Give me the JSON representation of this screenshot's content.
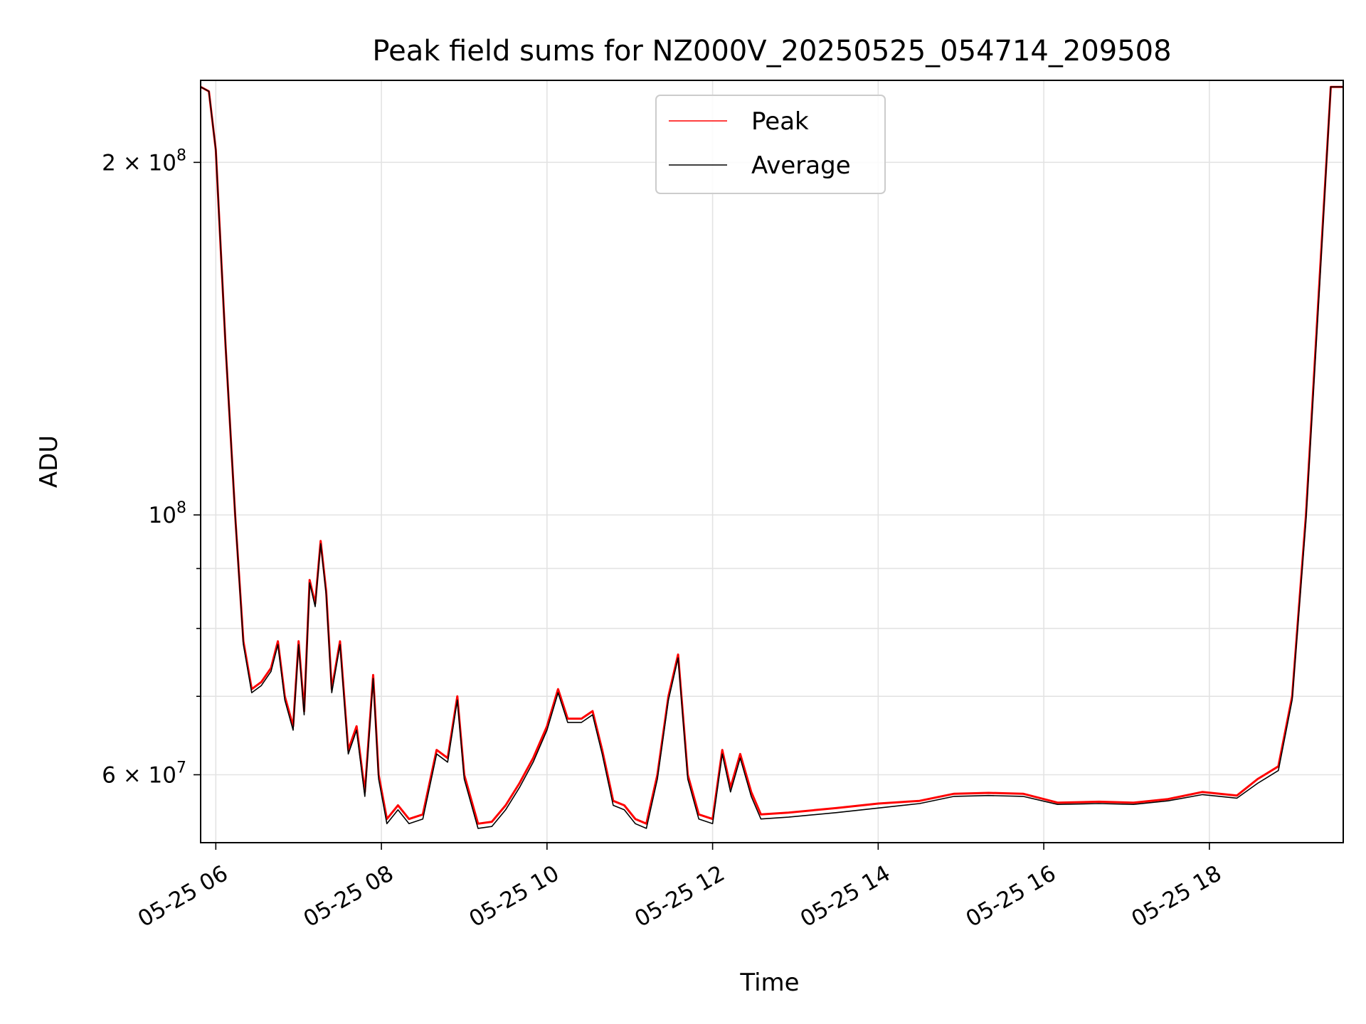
{
  "chart_data": {
    "type": "line",
    "title": "Peak field sums for NZ000V_20250525_054714_209508",
    "xlabel": "Time",
    "ylabel": "ADU",
    "yscale": "log",
    "xlim": [
      "2025-05-25 05:49",
      "2025-05-25 19:37"
    ],
    "ylim": [
      52500000,
      235000000
    ],
    "grid": true,
    "legend_position": "top-center",
    "x_tick_labels": [
      "05-25 06",
      "05-25 08",
      "05-25 10",
      "05-25 12",
      "05-25 14",
      "05-25 16",
      "05-25 18"
    ],
    "x_ticks": [
      "2025-05-25 06:00",
      "2025-05-25 08:00",
      "2025-05-25 10:00",
      "2025-05-25 12:00",
      "2025-05-25 14:00",
      "2025-05-25 16:00",
      "2025-05-25 18:00"
    ],
    "y_major_ticks": [
      {
        "value": 60000000,
        "label_mantissa": "6",
        "label_base": "10",
        "label_exp": "7"
      },
      {
        "value": 100000000,
        "label_mantissa": "",
        "label_base": "10",
        "label_exp": "8"
      },
      {
        "value": 200000000,
        "label_mantissa": "2",
        "label_base": "10",
        "label_exp": "8"
      }
    ],
    "y_minor_ticks": [
      70000000,
      80000000,
      90000000
    ],
    "series": [
      {
        "name": "Peak",
        "color": "#ff0000",
        "points": [
          [
            "2025-05-25 05:49",
            232000000
          ],
          [
            "2025-05-25 05:55",
            230000000
          ],
          [
            "2025-05-25 06:00",
            205000000
          ],
          [
            "2025-05-25 06:07",
            140000000
          ],
          [
            "2025-05-25 06:14",
            100000000
          ],
          [
            "2025-05-25 06:20",
            78000000
          ],
          [
            "2025-05-25 06:26",
            71000000
          ],
          [
            "2025-05-25 06:33",
            72000000
          ],
          [
            "2025-05-25 06:40",
            74000000
          ],
          [
            "2025-05-25 06:45",
            78000000
          ],
          [
            "2025-05-25 06:50",
            70000000
          ],
          [
            "2025-05-25 06:56",
            66000000
          ],
          [
            "2025-05-25 07:00",
            78000000
          ],
          [
            "2025-05-25 07:04",
            68000000
          ],
          [
            "2025-05-25 07:08",
            88000000
          ],
          [
            "2025-05-25 07:12",
            84000000
          ],
          [
            "2025-05-25 07:16",
            95000000
          ],
          [
            "2025-05-25 07:20",
            86000000
          ],
          [
            "2025-05-25 07:24",
            71000000
          ],
          [
            "2025-05-25 07:30",
            78000000
          ],
          [
            "2025-05-25 07:36",
            63000000
          ],
          [
            "2025-05-25 07:42",
            66000000
          ],
          [
            "2025-05-25 07:48",
            58000000
          ],
          [
            "2025-05-25 07:54",
            73000000
          ],
          [
            "2025-05-25 07:58",
            60000000
          ],
          [
            "2025-05-25 08:04",
            55000000
          ],
          [
            "2025-05-25 08:12",
            56500000
          ],
          [
            "2025-05-25 08:20",
            55000000
          ],
          [
            "2025-05-25 08:30",
            55500000
          ],
          [
            "2025-05-25 08:40",
            63000000
          ],
          [
            "2025-05-25 08:48",
            62000000
          ],
          [
            "2025-05-25 08:55",
            70000000
          ],
          [
            "2025-05-25 09:00",
            60000000
          ],
          [
            "2025-05-25 09:10",
            54500000
          ],
          [
            "2025-05-25 09:20",
            54700000
          ],
          [
            "2025-05-25 09:30",
            56500000
          ],
          [
            "2025-05-25 09:40",
            59000000
          ],
          [
            "2025-05-25 09:50",
            62000000
          ],
          [
            "2025-05-25 10:00",
            66000000
          ],
          [
            "2025-05-25 10:08",
            71000000
          ],
          [
            "2025-05-25 10:15",
            67000000
          ],
          [
            "2025-05-25 10:25",
            67000000
          ],
          [
            "2025-05-25 10:33",
            68000000
          ],
          [
            "2025-05-25 10:40",
            63000000
          ],
          [
            "2025-05-25 10:48",
            57000000
          ],
          [
            "2025-05-25 10:56",
            56500000
          ],
          [
            "2025-05-25 11:04",
            55000000
          ],
          [
            "2025-05-25 11:12",
            54500000
          ],
          [
            "2025-05-25 11:20",
            60000000
          ],
          [
            "2025-05-25 11:28",
            70000000
          ],
          [
            "2025-05-25 11:35",
            76000000
          ],
          [
            "2025-05-25 11:42",
            60000000
          ],
          [
            "2025-05-25 11:50",
            55500000
          ],
          [
            "2025-05-25 12:00",
            55000000
          ],
          [
            "2025-05-25 12:07",
            63000000
          ],
          [
            "2025-05-25 12:13",
            58500000
          ],
          [
            "2025-05-25 12:20",
            62500000
          ],
          [
            "2025-05-25 12:28",
            58000000
          ],
          [
            "2025-05-25 12:35",
            55500000
          ],
          [
            "2025-05-25 12:55",
            55700000
          ],
          [
            "2025-05-25 13:30",
            56200000
          ],
          [
            "2025-05-25 14:00",
            56700000
          ],
          [
            "2025-05-25 14:30",
            57000000
          ],
          [
            "2025-05-25 14:55",
            57800000
          ],
          [
            "2025-05-25 15:20",
            57900000
          ],
          [
            "2025-05-25 15:45",
            57800000
          ],
          [
            "2025-05-25 16:10",
            56800000
          ],
          [
            "2025-05-25 16:40",
            56900000
          ],
          [
            "2025-05-25 17:05",
            56800000
          ],
          [
            "2025-05-25 17:30",
            57200000
          ],
          [
            "2025-05-25 17:55",
            58000000
          ],
          [
            "2025-05-25 18:20",
            57600000
          ],
          [
            "2025-05-25 18:35",
            59500000
          ],
          [
            "2025-05-25 18:50",
            61000000
          ],
          [
            "2025-05-25 19:00",
            70000000
          ],
          [
            "2025-05-25 19:10",
            100000000
          ],
          [
            "2025-05-25 19:20",
            160000000
          ],
          [
            "2025-05-25 19:28",
            232000000
          ],
          [
            "2025-05-25 19:37",
            232000000
          ]
        ]
      },
      {
        "name": "Average",
        "color": "#000000",
        "points": [
          [
            "2025-05-25 05:49",
            232000000
          ],
          [
            "2025-05-25 05:55",
            230000000
          ],
          [
            "2025-05-25 06:00",
            205000000
          ],
          [
            "2025-05-25 06:07",
            140000000
          ],
          [
            "2025-05-25 06:14",
            100000000
          ],
          [
            "2025-05-25 06:20",
            77500000
          ],
          [
            "2025-05-25 06:26",
            70500000
          ],
          [
            "2025-05-25 06:33",
            71500000
          ],
          [
            "2025-05-25 06:40",
            73500000
          ],
          [
            "2025-05-25 06:45",
            77500000
          ],
          [
            "2025-05-25 06:50",
            69500000
          ],
          [
            "2025-05-25 06:56",
            65500000
          ],
          [
            "2025-05-25 07:00",
            77500000
          ],
          [
            "2025-05-25 07:04",
            67500000
          ],
          [
            "2025-05-25 07:08",
            87500000
          ],
          [
            "2025-05-25 07:12",
            83500000
          ],
          [
            "2025-05-25 07:16",
            94500000
          ],
          [
            "2025-05-25 07:20",
            85500000
          ],
          [
            "2025-05-25 07:24",
            70500000
          ],
          [
            "2025-05-25 07:30",
            77500000
          ],
          [
            "2025-05-25 07:36",
            62500000
          ],
          [
            "2025-05-25 07:42",
            65500000
          ],
          [
            "2025-05-25 07:48",
            57500000
          ],
          [
            "2025-05-25 07:54",
            72500000
          ],
          [
            "2025-05-25 07:58",
            59500000
          ],
          [
            "2025-05-25 08:04",
            54500000
          ],
          [
            "2025-05-25 08:12",
            56000000
          ],
          [
            "2025-05-25 08:20",
            54500000
          ],
          [
            "2025-05-25 08:30",
            55000000
          ],
          [
            "2025-05-25 08:40",
            62500000
          ],
          [
            "2025-05-25 08:48",
            61500000
          ],
          [
            "2025-05-25 08:55",
            69500000
          ],
          [
            "2025-05-25 09:00",
            59500000
          ],
          [
            "2025-05-25 09:10",
            54000000
          ],
          [
            "2025-05-25 09:20",
            54200000
          ],
          [
            "2025-05-25 09:30",
            56000000
          ],
          [
            "2025-05-25 09:40",
            58500000
          ],
          [
            "2025-05-25 09:50",
            61500000
          ],
          [
            "2025-05-25 10:00",
            65500000
          ],
          [
            "2025-05-25 10:08",
            70500000
          ],
          [
            "2025-05-25 10:15",
            66500000
          ],
          [
            "2025-05-25 10:25",
            66500000
          ],
          [
            "2025-05-25 10:33",
            67500000
          ],
          [
            "2025-05-25 10:40",
            62500000
          ],
          [
            "2025-05-25 10:48",
            56500000
          ],
          [
            "2025-05-25 10:56",
            56000000
          ],
          [
            "2025-05-25 11:04",
            54500000
          ],
          [
            "2025-05-25 11:12",
            54000000
          ],
          [
            "2025-05-25 11:20",
            59500000
          ],
          [
            "2025-05-25 11:28",
            69500000
          ],
          [
            "2025-05-25 11:35",
            75500000
          ],
          [
            "2025-05-25 11:42",
            59500000
          ],
          [
            "2025-05-25 11:50",
            55000000
          ],
          [
            "2025-05-25 12:00",
            54500000
          ],
          [
            "2025-05-25 12:07",
            62500000
          ],
          [
            "2025-05-25 12:13",
            58000000
          ],
          [
            "2025-05-25 12:20",
            62000000
          ],
          [
            "2025-05-25 12:28",
            57500000
          ],
          [
            "2025-05-25 12:35",
            55000000
          ],
          [
            "2025-05-25 12:55",
            55200000
          ],
          [
            "2025-05-25 13:30",
            55700000
          ],
          [
            "2025-05-25 14:00",
            56200000
          ],
          [
            "2025-05-25 14:30",
            56700000
          ],
          [
            "2025-05-25 14:55",
            57500000
          ],
          [
            "2025-05-25 15:20",
            57600000
          ],
          [
            "2025-05-25 15:45",
            57500000
          ],
          [
            "2025-05-25 16:10",
            56600000
          ],
          [
            "2025-05-25 16:40",
            56700000
          ],
          [
            "2025-05-25 17:05",
            56600000
          ],
          [
            "2025-05-25 17:30",
            57000000
          ],
          [
            "2025-05-25 17:55",
            57700000
          ],
          [
            "2025-05-25 18:20",
            57300000
          ],
          [
            "2025-05-25 18:35",
            59000000
          ],
          [
            "2025-05-25 18:50",
            60500000
          ],
          [
            "2025-05-25 19:00",
            69500000
          ],
          [
            "2025-05-25 19:10",
            99000000
          ],
          [
            "2025-05-25 19:20",
            158000000
          ],
          [
            "2025-05-25 19:28",
            232000000
          ],
          [
            "2025-05-25 19:37",
            232000000
          ]
        ]
      }
    ]
  }
}
